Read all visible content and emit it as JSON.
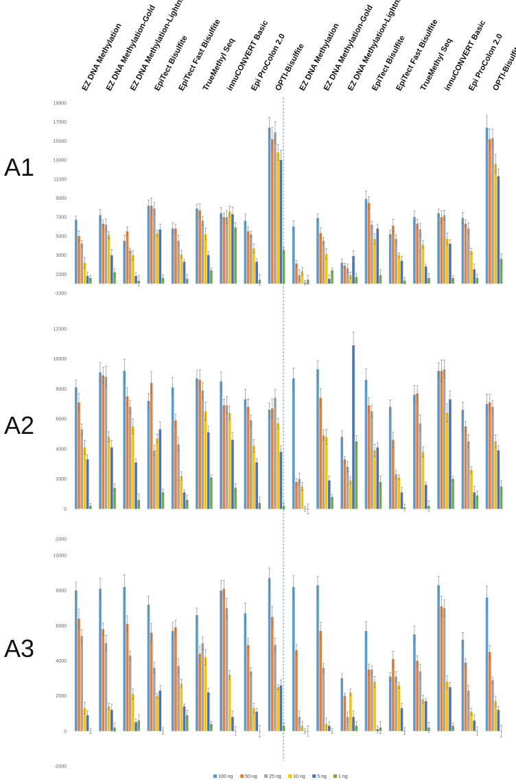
{
  "figure": {
    "kits": [
      "EZ DNA Methylation",
      "EZ DNA Methylation-Gold",
      "EZ DNA Methylation-Lightning",
      "EpiTect Bisulfite",
      "EpiTect Fast Bisulfite",
      "TrueMethyl Seq",
      "innuCONVERT Basic",
      "Epi ProColon 2.0",
      "OPTI-Bisulfite"
    ],
    "colors": {
      "100 ng": "#5b9bd5",
      "50 ng": "#ed7d31",
      "25 ng": "#a5a5a5",
      "10 ng": "#ffc000",
      "5 ng": "#4472c4",
      "1 ng": "#70ad47"
    },
    "divider_color": "#5b9bd5"
  },
  "chart_data": [
    {
      "type": "bar",
      "panel": "A1",
      "ylim": [
        -1000,
        19000
      ],
      "yticks": [
        "-1000",
        "1000",
        "3000",
        "5000",
        "7000",
        "9000",
        "11000",
        "13000",
        "15000",
        "17000",
        "19000"
      ],
      "categories": [
        "EZ DNA Methylation",
        "EZ DNA Methylation-Gold",
        "EZ DNA Methylation-Lightning",
        "EpiTect Bisulfite",
        "EpiTect Fast Bisulfite",
        "TrueMethyl Seq",
        "innuCONVERT Basic",
        "Epi ProColon 2.0",
        "OPTI-Bisulfite",
        "EZ DNA Methylation",
        "EZ DNA Methylation-Gold",
        "EZ DNA Methylation-Lightning",
        "EpiTect Bisulfite",
        "EpiTect Fast Bisulfite",
        "TrueMethyl Seq",
        "innuCONVERT Basic",
        "Epi ProColon 2.0",
        "OPTI-Bisulfite"
      ],
      "series": [
        {
          "name": "100 ng",
          "values": [
            6700,
            7200,
            4500,
            8200,
            5800,
            7900,
            7400,
            6600,
            16400,
            6000,
            6900,
            2200,
            8900,
            5200,
            7000,
            7400,
            6900,
            16400
          ]
        },
        {
          "name": "50 ng",
          "values": [
            5000,
            6300,
            5500,
            8200,
            5800,
            7700,
            7000,
            5500,
            15200,
            2100,
            5300,
            1900,
            8500,
            6100,
            6300,
            7000,
            6300,
            15200
          ]
        },
        {
          "name": "25 ng",
          "values": [
            4200,
            6200,
            3500,
            7900,
            4500,
            6600,
            7000,
            5200,
            15900,
            900,
            4500,
            1600,
            6200,
            4700,
            5700,
            7200,
            5800,
            15300
          ]
        },
        {
          "name": "10 ng",
          "values": [
            2200,
            5100,
            3000,
            5300,
            3100,
            5200,
            7600,
            3700,
            13800,
            1300,
            3100,
            900,
            4700,
            3000,
            4100,
            4700,
            3400,
            12600
          ]
        },
        {
          "name": "5 ng",
          "values": [
            800,
            3000,
            800,
            5700,
            2300,
            3000,
            7300,
            2300,
            13000,
            100,
            500,
            2900,
            5800,
            2400,
            1800,
            4200,
            1500,
            11300
          ]
        },
        {
          "name": "1 ng",
          "values": [
            600,
            1200,
            300,
            600,
            500,
            1400,
            5900,
            400,
            3500,
            400,
            1400,
            700,
            900,
            300,
            600,
            600,
            600,
            2600
          ]
        }
      ]
    },
    {
      "type": "bar",
      "panel": "A2",
      "ylim": [
        -2000,
        12000
      ],
      "yticks": [
        "-2000",
        "0",
        "2000",
        "4000",
        "6000",
        "8000",
        "10000",
        "12000"
      ],
      "categories": [
        "EZ DNA Methylation",
        "EZ DNA Methylation-Gold",
        "EZ DNA Methylation-Lightning",
        "EpiTect Bisulfite",
        "EpiTect Fast Bisulfite",
        "TrueMethyl Seq",
        "innuCONVERT Basic",
        "Epi ProColon 2.0",
        "OPTI-Bisulfite",
        "EZ DNA Methylation",
        "EZ DNA Methylation-Gold",
        "EZ DNA Methylation-Lightning",
        "EpiTect Bisulfite",
        "EpiTect Fast Bisulfite",
        "TrueMethyl Seq",
        "innuCONVERT Basic",
        "Epi ProColon 2.0",
        "OPTI-Bisulfite"
      ],
      "series": [
        {
          "name": "100 ng",
          "values": [
            8100,
            9100,
            9200,
            7200,
            8100,
            8700,
            8500,
            7300,
            6600,
            8700,
            9300,
            4800,
            8600,
            6800,
            7600,
            9200,
            6600,
            7000
          ]
        },
        {
          "name": "50 ng",
          "values": [
            7100,
            8900,
            7500,
            8400,
            5900,
            8600,
            6900,
            6800,
            6700,
            1800,
            7400,
            3300,
            6900,
            4600,
            7700,
            9200,
            5500,
            7100
          ]
        },
        {
          "name": "25 ng",
          "values": [
            5300,
            8800,
            6800,
            3900,
            4300,
            7900,
            6900,
            5900,
            7400,
            2000,
            4900,
            2800,
            6500,
            2300,
            5700,
            9300,
            4500,
            6800
          ]
        },
        {
          "name": "10 ng",
          "values": [
            4100,
            4800,
            5500,
            4700,
            2200,
            6500,
            6400,
            4200,
            5700,
            1500,
            4800,
            1900,
            3900,
            2100,
            3800,
            6400,
            2600,
            4500
          ]
        },
        {
          "name": "5 ng",
          "values": [
            3300,
            4100,
            3100,
            5300,
            1100,
            5100,
            4600,
            3100,
            3800,
            0,
            1900,
            10900,
            4100,
            1100,
            1600,
            7300,
            1100,
            3900
          ]
        },
        {
          "name": "1 ng",
          "values": [
            200,
            1400,
            600,
            1100,
            600,
            2100,
            1400,
            400,
            200,
            0,
            800,
            4500,
            1800,
            100,
            200,
            2000,
            900,
            1500
          ]
        }
      ]
    },
    {
      "type": "bar",
      "panel": "A3",
      "ylim": [
        -2000,
        10000
      ],
      "yticks": [
        "-2000",
        "0",
        "2000",
        "4000",
        "6000",
        "8000",
        "10000"
      ],
      "categories": [
        "EZ DNA Methylation",
        "EZ DNA Methylation-Gold",
        "EZ DNA Methylation-Lightning",
        "EpiTect Bisulfite",
        "EpiTect Fast Bisulfite",
        "TrueMethyl Seq",
        "innuCONVERT Basic",
        "Epi ProColon 2.0",
        "OPTI-Bisulfite",
        "EZ DNA Methylation",
        "EZ DNA Methylation-Gold",
        "EZ DNA Methylation-Lightning",
        "EpiTect Bisulfite",
        "EpiTect Fast Bisulfite",
        "TrueMethyl Seq",
        "innuCONVERT Basic",
        "Epi ProColon 2.0",
        "OPTI-Bisulfite"
      ],
      "series": [
        {
          "name": "100 ng",
          "values": [
            8000,
            8100,
            8200,
            7200,
            5700,
            6600,
            8000,
            6700,
            8700,
            8200,
            8300,
            3000,
            5700,
            3100,
            5500,
            8300,
            5200,
            7600
          ]
        },
        {
          "name": "50 ng",
          "values": [
            6400,
            5800,
            6100,
            5600,
            5900,
            4400,
            8100,
            4900,
            6500,
            4600,
            5700,
            2000,
            3500,
            4100,
            4000,
            7100,
            3900,
            4500
          ]
        },
        {
          "name": "25 ng",
          "values": [
            5400,
            5000,
            4300,
            3600,
            3700,
            5000,
            7000,
            3400,
            4900,
            800,
            3600,
            800,
            3500,
            3100,
            3400,
            7000,
            2300,
            2900
          ]
        },
        {
          "name": "10 ng",
          "values": [
            1300,
            1400,
            2100,
            2000,
            2700,
            4200,
            3200,
            1300,
            2500,
            300,
            400,
            2200,
            2800,
            2600,
            1800,
            2800,
            1100,
            1700
          ]
        },
        {
          "name": "5 ng",
          "values": [
            900,
            1200,
            500,
            2300,
            1400,
            2200,
            800,
            1100,
            2600,
            0,
            300,
            800,
            100,
            1300,
            1700,
            2500,
            600,
            1200
          ]
        },
        {
          "name": "1 ng",
          "values": [
            0,
            200,
            600,
            0,
            900,
            400,
            0,
            0,
            300,
            0,
            0,
            300,
            200,
            0,
            200,
            300,
            0,
            0
          ]
        }
      ]
    }
  ],
  "legend": [
    "100 ng",
    "50 ng",
    "25 ng",
    "10 ng",
    "5 ng",
    "1 ng"
  ]
}
